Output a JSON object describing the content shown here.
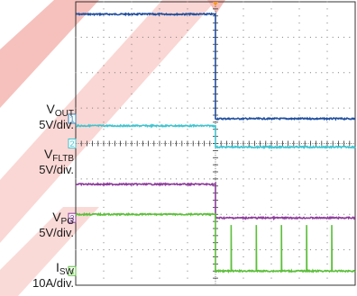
{
  "chart_data": {
    "type": "line",
    "title": "",
    "xlabel": "",
    "ylabel": "",
    "x_divisions": 10,
    "y_divisions": 8,
    "xlim": [
      0,
      10
    ],
    "ylim": [
      -4,
      4
    ],
    "grid": true,
    "fault_time_div": 5.0,
    "channels": [
      {
        "name_main": "V",
        "name_sub": "OUT",
        "scale": "5V/div.",
        "marker": "1",
        "color": "#1f4e9e",
        "marker_color": "#2f7fb4",
        "ground_level_div": 0.7,
        "level_before_div": 3.65,
        "level_after_div": 0.7
      },
      {
        "name_main": "V",
        "name_sub": "FLTB",
        "scale": "5V/div.",
        "marker": "2",
        "color": "#3fc4cf",
        "marker_color": "#3fc4cf",
        "ground_level_div": 0.0,
        "level_before_div": 0.5,
        "level_after_div": -0.1
      },
      {
        "name_main": "V",
        "name_sub": "PG",
        "scale": "5V/div.",
        "marker": "3",
        "color": "#8e3b9c",
        "marker_color": "#8e3b9c",
        "ground_level_div": -2.1,
        "level_before_div": -1.15,
        "level_after_div": -2.1
      },
      {
        "name_main": "I",
        "name_sub": "SW",
        "scale": "10A/div.",
        "marker": "4",
        "color": "#5cbf3a",
        "marker_color": "#5cbf3a",
        "ground_level_div": -3.6,
        "level_before_div": -2.0,
        "level_after_div": -3.6,
        "spike_times_div": [
          5.55,
          6.45,
          7.35,
          8.25,
          9.15
        ],
        "spike_peak_div": -2.3
      }
    ]
  },
  "trigger_color": "#f29a2e",
  "watermark_color": "#f5b6b0"
}
